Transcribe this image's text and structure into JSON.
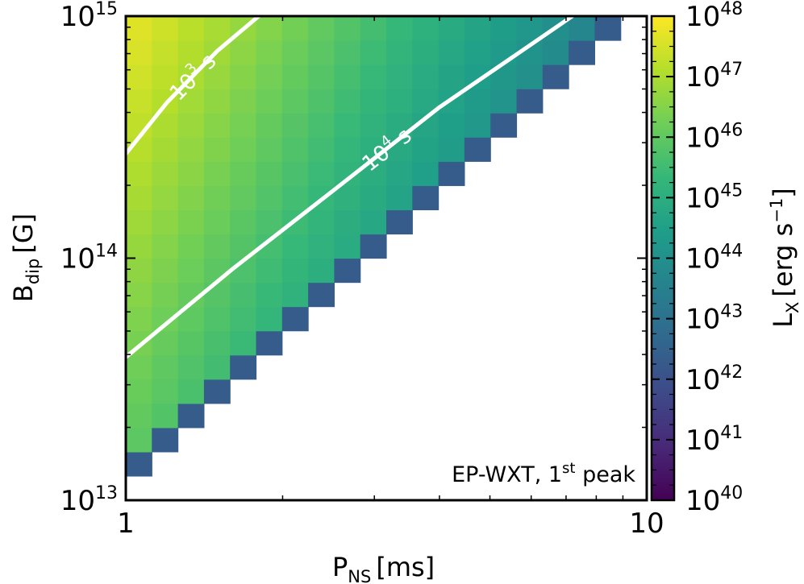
{
  "chart_data": {
    "type": "heatmap",
    "xlabel": {
      "main": "P",
      "sub": "NS",
      "unit": "[ms]"
    },
    "ylabel": {
      "main": "B",
      "sub": "dip",
      "unit": "[G]"
    },
    "colorbar_label": {
      "main": "L",
      "sub": "X",
      "unit": "[erg s",
      "unit_sup": "−1",
      "unit_close": "]"
    },
    "annotation": {
      "prefix": "EP-WXT, 1",
      "sup": "st",
      "suffix": " peak"
    },
    "x_scale": "log",
    "y_scale": "log",
    "xlim_ms": [
      1,
      10
    ],
    "ylim_G": [
      10000000000000.0,
      1000000000000000.0
    ],
    "clim_log10": [
      40,
      48
    ],
    "colormap": "viridis",
    "x_ticks": [
      {
        "value": 1,
        "label": "1"
      },
      {
        "value": 10,
        "label": "10"
      }
    ],
    "y_ticks": [
      {
        "value": 10000000000000.0,
        "base": "10",
        "exp": "13"
      },
      {
        "value": 100000000000000.0,
        "base": "10",
        "exp": "14"
      },
      {
        "value": 1000000000000000.0,
        "base": "10",
        "exp": "15"
      }
    ],
    "colorbar_ticks": [
      {
        "value": 40,
        "base": "10",
        "exp": "40"
      },
      {
        "value": 41,
        "base": "10",
        "exp": "41"
      },
      {
        "value": 42,
        "base": "10",
        "exp": "42"
      },
      {
        "value": 43,
        "base": "10",
        "exp": "43"
      },
      {
        "value": 44,
        "base": "10",
        "exp": "44"
      },
      {
        "value": 45,
        "base": "10",
        "exp": "45"
      },
      {
        "value": 46,
        "base": "10",
        "exp": "46"
      },
      {
        "value": 47,
        "base": "10",
        "exp": "47"
      },
      {
        "value": 48,
        "base": "10",
        "exp": "48"
      }
    ],
    "grid": {
      "n_x": 20,
      "n_y": 20,
      "x_log10_range": [
        0,
        1
      ],
      "y_log10_range": [
        13,
        15
      ],
      "description": "log10 L_X per cell; cells only filled where B_dip is large enough relative to P_NS (upper-left triangle)",
      "filled_min_row_by_column": [
        1,
        2,
        3,
        4,
        5,
        6,
        7,
        8,
        9,
        10,
        11,
        12,
        13,
        14,
        15,
        16,
        17,
        18,
        19,
        20
      ],
      "log10_Lx_at_Bmax_Pmin": 47.8,
      "log10_Lx_slope_per_log10_B": 1.0,
      "log10_Lx_slope_per_log10_P": -4.6,
      "log10_Lx_edge": 42.0
    },
    "contours": [
      {
        "label_base": "10",
        "label_exp": "3",
        "label_unit": " s",
        "line_color": "#ffffff",
        "points": [
          {
            "P_ms": 1.0,
            "B_G": 270000000000000.0
          },
          {
            "P_ms": 1.2,
            "B_G": 440000000000000.0
          },
          {
            "P_ms": 1.5,
            "B_G": 720000000000000.0
          },
          {
            "P_ms": 1.8,
            "B_G": 1000000000000000.0
          }
        ]
      },
      {
        "label_base": "10",
        "label_exp": "4",
        "label_unit": " s",
        "line_color": "#ffffff",
        "points": [
          {
            "P_ms": 1.0,
            "B_G": 39000000000000.0
          },
          {
            "P_ms": 1.6,
            "B_G": 90000000000000.0
          },
          {
            "P_ms": 2.5,
            "B_G": 190000000000000.0
          },
          {
            "P_ms": 4.0,
            "B_G": 420000000000000.0
          },
          {
            "P_ms": 7.2,
            "B_G": 1000000000000000.0
          }
        ]
      }
    ]
  },
  "colors": {
    "viridis": [
      "#440154",
      "#482878",
      "#3e4a89",
      "#31688e",
      "#26828e",
      "#1f9e89",
      "#35b779",
      "#6ece58",
      "#b5de2b",
      "#fde725"
    ],
    "contour": "#ffffff",
    "axes": "#000000"
  }
}
